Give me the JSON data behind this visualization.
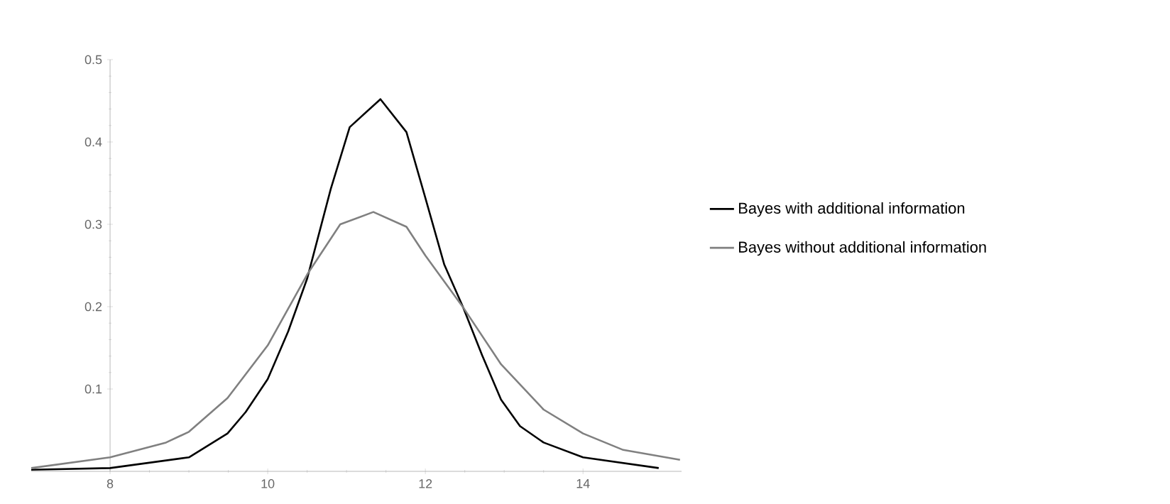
{
  "chart_data": {
    "type": "line",
    "xlim": [
      7,
      15.25
    ],
    "ylim": [
      0,
      0.5
    ],
    "xticks": [
      8,
      10,
      12,
      14
    ],
    "yticks": [
      0.1,
      0.2,
      0.3,
      0.4,
      0.5
    ],
    "legend": "right",
    "series": [
      {
        "name": "Bayes with additional information",
        "color": "#000000",
        "x": [
          7.0,
          8.0,
          9.0,
          9.49,
          9.72,
          10.0,
          10.26,
          10.5,
          10.8,
          11.04,
          11.43,
          11.76,
          12.0,
          12.24,
          12.48,
          12.72,
          12.96,
          13.2,
          13.5,
          14.0,
          14.96
        ],
        "values": [
          0.002,
          0.004,
          0.017,
          0.046,
          0.072,
          0.112,
          0.17,
          0.234,
          0.343,
          0.418,
          0.452,
          0.412,
          0.332,
          0.251,
          0.199,
          0.141,
          0.087,
          0.055,
          0.035,
          0.017,
          0.004
        ]
      },
      {
        "name": "Bayes without additional information",
        "color": "#808080",
        "x": [
          7.0,
          8.0,
          8.71,
          9.0,
          9.49,
          10.0,
          10.5,
          10.92,
          11.34,
          11.76,
          12.0,
          12.48,
          12.96,
          13.5,
          14.0,
          14.51,
          15.23
        ],
        "values": [
          0.004,
          0.017,
          0.035,
          0.048,
          0.089,
          0.153,
          0.239,
          0.3,
          0.315,
          0.297,
          0.262,
          0.199,
          0.13,
          0.075,
          0.046,
          0.026,
          0.014
        ]
      }
    ]
  }
}
